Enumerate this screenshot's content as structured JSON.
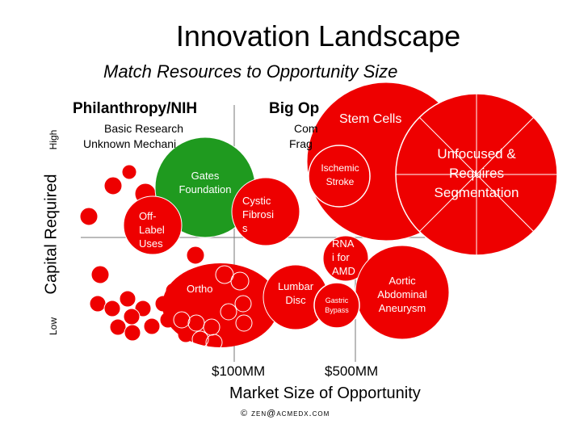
{
  "header": {
    "title": "Innovation Landscape",
    "subtitle": "Match Resources to Opportunity Size"
  },
  "quadrants": {
    "top_left": {
      "heading": "Philanthropy/NIH",
      "line1": "Basic Research",
      "line2": "Unknown Mechani"
    },
    "top_right": {
      "heading": "Big Op",
      "line1": "Com",
      "line2": "Frag"
    }
  },
  "axes": {
    "y_label": "Capital Required",
    "y_high": "High",
    "y_low": "Low",
    "x_label": "Market Size of Opportunity",
    "x_tick_1": "$100MM",
    "x_tick_2": "$500MM"
  },
  "footer": {
    "copyright": "© zen@acmedx.com"
  },
  "colors": {
    "bubble_red": "#ee0000",
    "bubble_green": "#1f9a1f",
    "axis": "#777777"
  },
  "bubbles": {
    "stem_cells": "Stem Cells",
    "unfocused_1": "Unfocused &",
    "unfocused_2": "Requires",
    "unfocused_3": "Segmentation",
    "ischemic_1": "Ischemic",
    "ischemic_2": "Stroke",
    "gates_1": "Gates",
    "gates_2": "Foundation",
    "cystic_1": "Cystic",
    "cystic_2": "Fibrosi",
    "cystic_3": "s",
    "offlabel_1": "Off-",
    "offlabel_2": "Label",
    "offlabel_3": "Uses",
    "rna_1": "RNA",
    "rna_2": "i for",
    "rna_3": "AMD",
    "aortic_1": "Aortic",
    "aortic_2": "Abdominal",
    "aortic_3": "Aneurysm",
    "lumbar_1": "Lumbar",
    "lumbar_2": "Disc",
    "gastric_1": "Gastric",
    "gastric_2": "Bypass",
    "ortho": "Ortho"
  }
}
